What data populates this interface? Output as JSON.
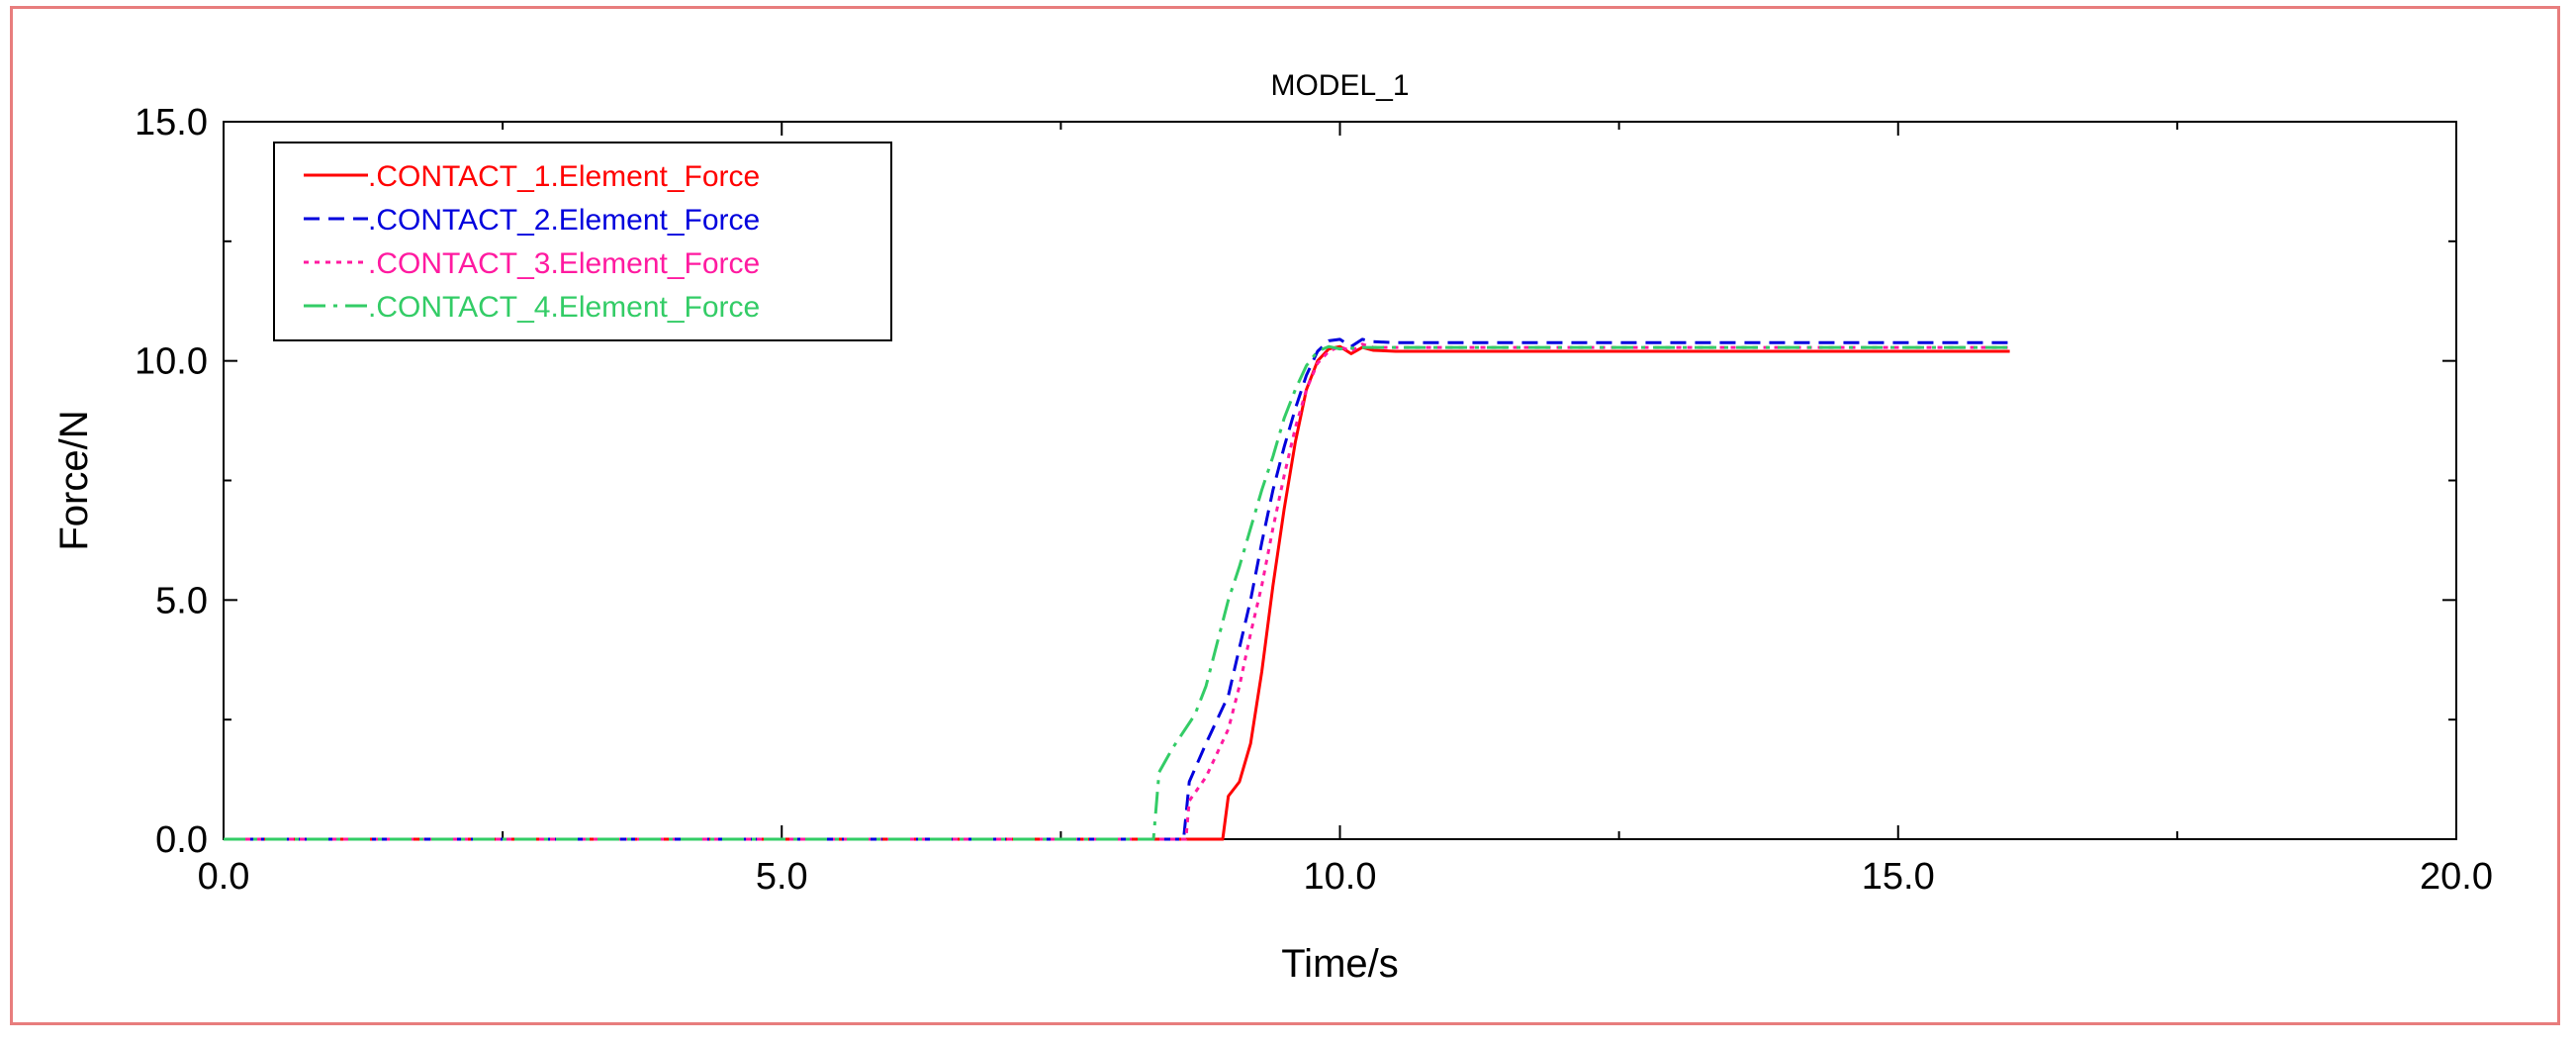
{
  "chart_data": {
    "type": "line",
    "title": "MODEL_1",
    "xlabel": "Time/s",
    "ylabel": "Force/N",
    "xlim": [
      0,
      20
    ],
    "ylim": [
      0,
      15
    ],
    "x_ticks": [
      "0.0",
      "5.0",
      "10.0",
      "15.0",
      "20.0"
    ],
    "y_ticks": [
      "0.0",
      "5.0",
      "10.0",
      "15.0"
    ],
    "grid": false,
    "legend_position": "top-left",
    "series": [
      {
        "name": ".CONTACT_1.Element_Force",
        "color": "#ff0000",
        "dash": "solid",
        "points": [
          [
            0,
            0
          ],
          [
            8.95,
            0
          ],
          [
            9.0,
            0.9
          ],
          [
            9.1,
            1.2
          ],
          [
            9.2,
            2.0
          ],
          [
            9.3,
            3.5
          ],
          [
            9.4,
            5.3
          ],
          [
            9.5,
            6.9
          ],
          [
            9.6,
            8.3
          ],
          [
            9.7,
            9.4
          ],
          [
            9.8,
            10.0
          ],
          [
            9.9,
            10.25
          ],
          [
            10.0,
            10.3
          ],
          [
            10.1,
            10.15
          ],
          [
            10.2,
            10.28
          ],
          [
            10.3,
            10.22
          ],
          [
            10.5,
            10.2
          ],
          [
            16,
            10.2
          ]
        ]
      },
      {
        "name": ".CONTACT_2.Element_Force",
        "color": "#0000dd",
        "dash": "dashed",
        "points": [
          [
            0,
            0
          ],
          [
            8.6,
            0
          ],
          [
            8.65,
            1.2
          ],
          [
            8.8,
            2.0
          ],
          [
            9.0,
            3.0
          ],
          [
            9.1,
            4.0
          ],
          [
            9.2,
            5.0
          ],
          [
            9.3,
            6.2
          ],
          [
            9.4,
            7.3
          ],
          [
            9.5,
            8.2
          ],
          [
            9.6,
            9.0
          ],
          [
            9.7,
            9.7
          ],
          [
            9.8,
            10.2
          ],
          [
            9.9,
            10.42
          ],
          [
            10.0,
            10.45
          ],
          [
            10.1,
            10.3
          ],
          [
            10.2,
            10.45
          ],
          [
            10.3,
            10.4
          ],
          [
            10.5,
            10.38
          ],
          [
            16,
            10.38
          ]
        ]
      },
      {
        "name": ".CONTACT_3.Element_Force",
        "color": "#ff1aa0",
        "dash": "dotted",
        "points": [
          [
            0,
            0
          ],
          [
            8.62,
            0
          ],
          [
            8.65,
            0.8
          ],
          [
            8.8,
            1.3
          ],
          [
            8.9,
            1.8
          ],
          [
            9.0,
            2.3
          ],
          [
            9.1,
            3.2
          ],
          [
            9.2,
            4.3
          ],
          [
            9.3,
            5.3
          ],
          [
            9.4,
            6.5
          ],
          [
            9.5,
            7.6
          ],
          [
            9.6,
            8.6
          ],
          [
            9.7,
            9.4
          ],
          [
            9.8,
            9.95
          ],
          [
            9.9,
            10.2
          ],
          [
            10.0,
            10.3
          ],
          [
            10.1,
            10.2
          ],
          [
            10.2,
            10.35
          ],
          [
            10.3,
            10.28
          ],
          [
            10.5,
            10.28
          ],
          [
            16,
            10.28
          ]
        ]
      },
      {
        "name": ".CONTACT_4.Element_Force",
        "color": "#33cc66",
        "dash": "dashdot",
        "points": [
          [
            0,
            0
          ],
          [
            8.33,
            0
          ],
          [
            8.38,
            1.4
          ],
          [
            8.5,
            1.9
          ],
          [
            8.7,
            2.6
          ],
          [
            8.8,
            3.2
          ],
          [
            8.9,
            4.1
          ],
          [
            9.0,
            5.0
          ],
          [
            9.1,
            5.7
          ],
          [
            9.2,
            6.5
          ],
          [
            9.3,
            7.3
          ],
          [
            9.4,
            8.0
          ],
          [
            9.5,
            8.8
          ],
          [
            9.6,
            9.4
          ],
          [
            9.7,
            9.9
          ],
          [
            9.8,
            10.2
          ],
          [
            9.9,
            10.3
          ],
          [
            10.0,
            10.25
          ],
          [
            10.2,
            10.28
          ],
          [
            10.5,
            10.28
          ],
          [
            16,
            10.28
          ]
        ]
      }
    ]
  }
}
